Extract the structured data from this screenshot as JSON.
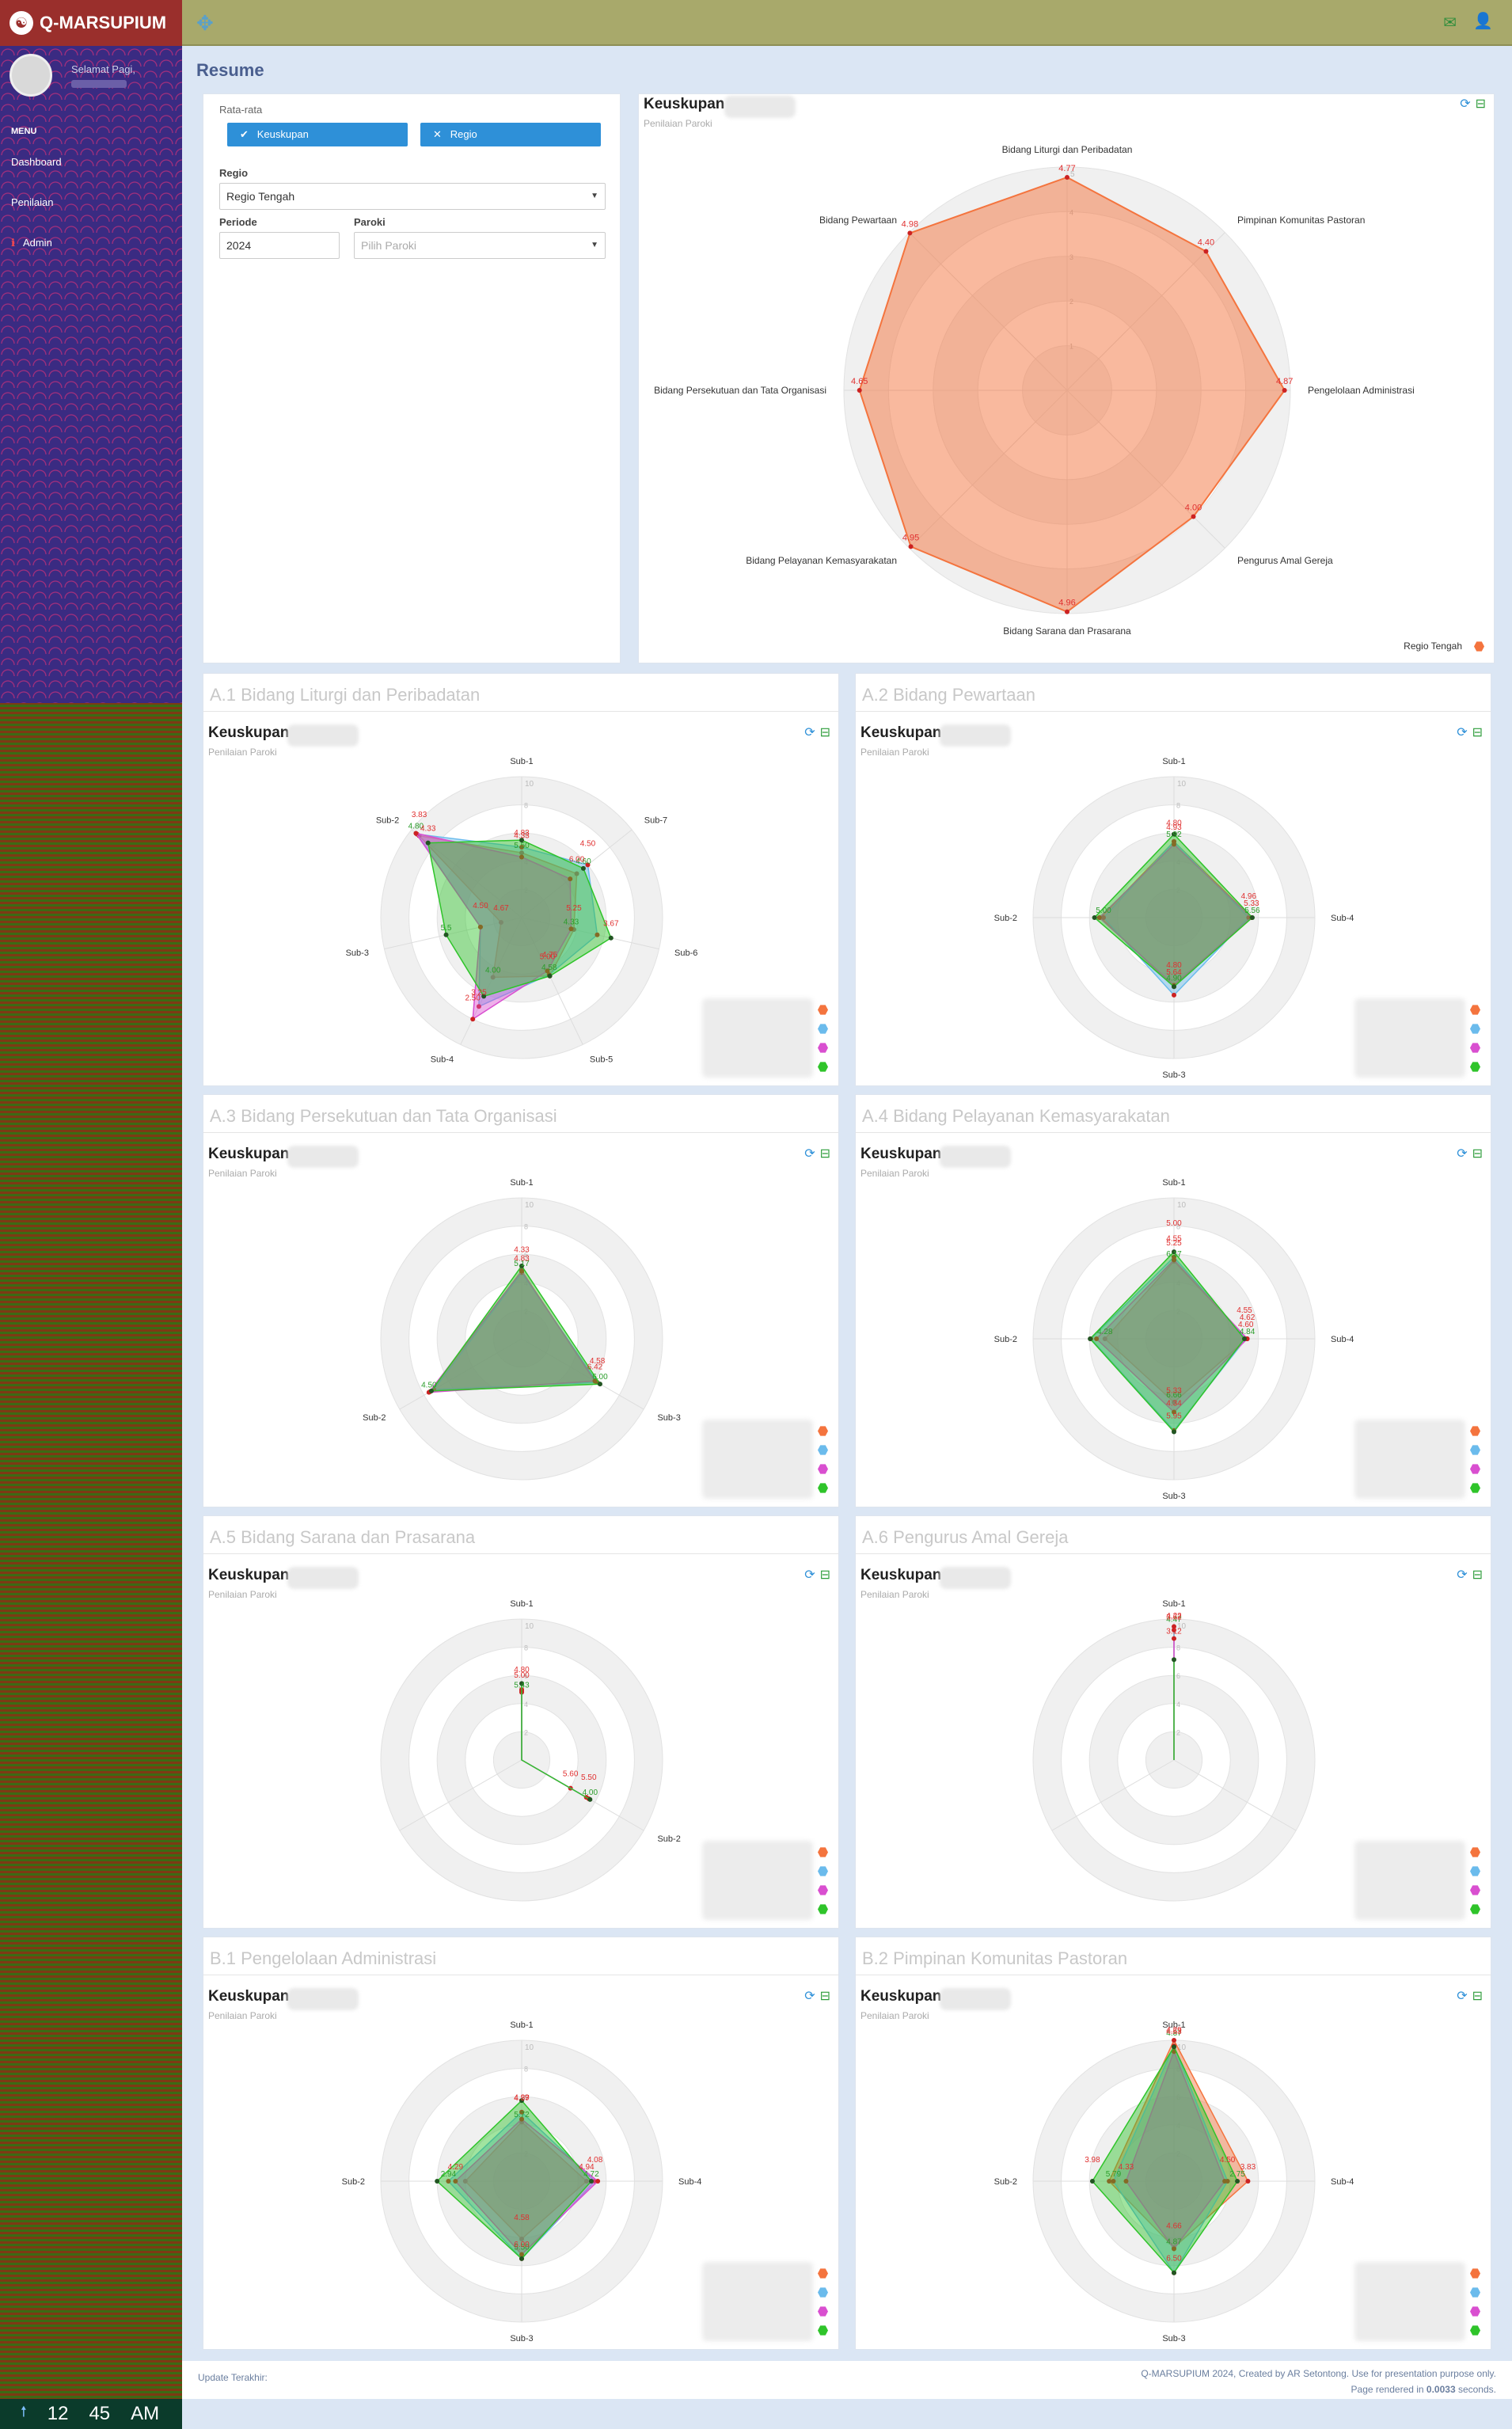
{
  "app": {
    "title": "Q-MARSUPIUM",
    "greeting": "Selamat Pagi,",
    "page_title": "Resume"
  },
  "sidebar": {
    "menu_header": "MENU",
    "items": [
      {
        "label": "Dashboard"
      },
      {
        "label": "Penilaian"
      },
      {
        "label": "Admin"
      }
    ]
  },
  "clock": {
    "hour": "12",
    "minute": "45",
    "ampm": "AM",
    "icon": "arrow-up-icon"
  },
  "filters": {
    "avg_label": "Rata-rata",
    "btn_keuskupan": "Keuskupan",
    "btn_regio": "Regio",
    "regio_label": "Regio",
    "regio_value": "Regio Tengah",
    "periode_label": "Periode",
    "periode_value": "2024",
    "paroki_label": "Paroki",
    "paroki_placeholder": "Pilih Paroki"
  },
  "colors": {
    "orange": "#f4743e",
    "blue": "#6bbbec",
    "purple": "#d94fd0",
    "green": "#2fc42a"
  },
  "main_chart": {
    "title": "Keuskupan",
    "subtitle": "Penilaian Paroki",
    "legend": "Regio Tengah"
  },
  "sections": [
    {
      "title": "A.1 Bidang Liturgi dan Peribadatan",
      "chart_title": "Keuskupan",
      "chart_subtitle": "Penilaian Paroki"
    },
    {
      "title": "A.2 Bidang Pewartaan",
      "chart_title": "Keuskupan",
      "chart_subtitle": "Penilaian Paroki"
    },
    {
      "title": "A.3 Bidang Persekutuan dan Tata Organisasi",
      "chart_title": "Keuskupan",
      "chart_subtitle": "Penilaian Paroki"
    },
    {
      "title": "A.4 Bidang Pelayanan Kemasyarakatan",
      "chart_title": "Keuskupan",
      "chart_subtitle": "Penilaian Paroki"
    },
    {
      "title": "A.5 Bidang Sarana dan Prasarana",
      "chart_title": "Keuskupan",
      "chart_subtitle": "Penilaian Paroki"
    },
    {
      "title": "A.6 Pengurus Amal Gereja",
      "chart_title": "Keuskupan",
      "chart_subtitle": "Penilaian Paroki"
    },
    {
      "title": "B.1 Pengelolaan Administrasi",
      "chart_title": "Keuskupan",
      "chart_subtitle": "Penilaian Paroki"
    },
    {
      "title": "B.2 Pimpinan Komunitas Pastoran",
      "chart_title": "Keuskupan",
      "chart_subtitle": "Penilaian Paroki"
    }
  ],
  "footer": {
    "update": "Update Terakhir:",
    "credit": "Q-MARSUPIUM 2024, Created by AR Setontong. Use for presentation purpose only.",
    "rendered_prefix": "Page rendered in ",
    "rendered_time": "0.0033",
    "rendered_suffix": " seconds."
  },
  "chart_data": [
    {
      "type": "radar",
      "categories": [
        "Bidang Liturgi dan Peribadatan",
        "Pimpinan Komunitas Pastoran",
        "Pengelolaan Administrasi",
        "Pengurus Amal Gereja",
        "Bidang Sarana dan Prasarana",
        "Bidang Pelayanan Kemasyarakatan",
        "Bidang Persekutuan dan Tata Organisasi",
        "Bidang Pewartaan"
      ],
      "series": [
        {
          "name": "Regio Tengah",
          "values": [
            4.77,
            4.4,
            4.87,
            4.0,
            4.96,
            4.95,
            4.65,
            4.98
          ]
        }
      ],
      "ylim": [
        0,
        5
      ],
      "value_labels": [
        "4.77",
        "4.40",
        "4.87",
        "4.00",
        "4.96",
        "4.95",
        "4.65",
        "4.98"
      ]
    },
    {
      "type": "radar",
      "categories": [
        "Sub-1",
        "Sub-7",
        "Sub-6",
        "Sub-5",
        "Sub-4",
        "Sub-3",
        "Sub-2"
      ],
      "series": [
        {
          "values": [
            4.6,
            5.0,
            3.8,
            4.6,
            4.7,
            1.5,
            9.3
          ]
        },
        {
          "values": [
            5.0,
            6.0,
            5.5,
            4.5,
            7.0,
            3.0,
            9.5
          ]
        },
        {
          "values": [
            4.3,
            4.4,
            3.6,
            4.2,
            8.0,
            3.0,
            9.6
          ]
        },
        {
          "values": [
            5.5,
            5.6,
            6.5,
            4.6,
            6.2,
            5.5,
            8.5
          ]
        }
      ],
      "ylim": [
        0,
        10
      ],
      "value_labels": [
        "5.50",
        "4.83",
        "4.33",
        "4.60",
        "6.00",
        "4.50",
        "4.33",
        "3.67",
        "5.25",
        "4.58",
        "5.00",
        "4.75",
        "4.00",
        "3.25",
        "2.50",
        "5.5",
        "4.67",
        "4.50",
        "4.80",
        "4.33",
        "3.83"
      ]
    },
    {
      "type": "radar",
      "categories": [
        "Sub-1",
        "Sub-4",
        "Sub-3",
        "Sub-2"
      ],
      "series": [
        {
          "values": [
            5.4,
            5.5,
            4.9,
            5.2
          ]
        },
        {
          "values": [
            5.4,
            5.3,
            5.5,
            5.0
          ]
        },
        {
          "values": [
            5.2,
            5.5,
            4.8,
            5.3
          ]
        },
        {
          "values": [
            5.92,
            5.56,
            4.9,
            5.64
          ]
        }
      ],
      "ylim": [
        0,
        10
      ],
      "value_labels": [
        "5.92",
        "4.93",
        "4.80",
        "5.56",
        "5.33",
        "4.96",
        "4.90",
        "5.64",
        "4.80",
        "5.00"
      ]
    },
    {
      "type": "radar",
      "categories": [
        "Sub-1",
        "Sub-3",
        "Sub-2"
      ],
      "series": [
        {
          "values": [
            4.83,
            6.0,
            7.5
          ]
        },
        {
          "values": [
            4.7,
            6.2,
            7.2
          ]
        },
        {
          "values": [
            4.8,
            6.0,
            7.6
          ]
        },
        {
          "values": [
            5.17,
            6.42,
            7.4
          ]
        }
      ],
      "ylim": [
        0,
        10
      ],
      "value_labels": [
        "5.17",
        "4.83",
        "4.33",
        "6.00",
        "6.42",
        "4.58",
        "4.50"
      ]
    },
    {
      "type": "radar",
      "categories": [
        "Sub-1",
        "Sub-4",
        "Sub-3",
        "Sub-2"
      ],
      "series": [
        {
          "values": [
            5.5,
            5.2,
            4.5,
            4.9
          ]
        },
        {
          "values": [
            5.8,
            5.1,
            6.5,
            5.9
          ]
        },
        {
          "values": [
            5.6,
            5.2,
            5.2,
            5.5
          ]
        },
        {
          "values": [
            6.17,
            5.0,
            6.6,
            5.95
          ]
        }
      ],
      "ylim": [
        0,
        10
      ],
      "value_labels": [
        "6.17",
        "5.25",
        "4.55",
        "5.00",
        "4.84",
        "4.60",
        "4.62",
        "4.55",
        "6.66",
        "5.95",
        "5.33",
        "4.34",
        "4.28"
      ]
    },
    {
      "type": "radar",
      "categories": [
        "Sub-1",
        "Sub-2"
      ],
      "series": [
        {
          "values": [
            4.8,
            4.0
          ]
        },
        {
          "values": [
            5.0,
            5.5
          ]
        },
        {
          "values": [
            4.9,
            5.3
          ]
        },
        {
          "values": [
            5.43,
            5.6
          ]
        }
      ],
      "ylim": [
        0,
        10
      ],
      "value_labels": [
        "5.43",
        "5.00",
        "4.80",
        "4.00",
        "5.60",
        "5.50"
      ]
    },
    {
      "type": "radar",
      "categories": [
        "Sub-1"
      ],
      "series": [
        {
          "values": [
            9.47
          ]
        },
        {
          "values": [
            9.22
          ]
        },
        {
          "values": [
            8.62
          ]
        },
        {
          "values": [
            7.12
          ]
        }
      ],
      "ylim": [
        0,
        10
      ],
      "value_labels": [
        "4.47",
        "4.22",
        "3.62",
        "3.12"
      ]
    },
    {
      "type": "radar",
      "categories": [
        "Sub-1",
        "Sub-4",
        "Sub-3",
        "Sub-2"
      ],
      "series": [
        {
          "values": [
            4.2,
            4.6,
            4.1,
            4.0
          ]
        },
        {
          "values": [
            4.9,
            5.2,
            5.5,
            5.2
          ]
        },
        {
          "values": [
            4.4,
            5.4,
            5.2,
            4.7
          ]
        },
        {
          "values": [
            5.72,
            4.94,
            5.5,
            6.0
          ]
        }
      ],
      "ylim": [
        0,
        10
      ],
      "value_labels": [
        "5.72",
        "4.57",
        "4.29",
        "4.72",
        "4.94",
        "4.08",
        "5.50",
        "6.00",
        "4.58",
        "2.94",
        "4.29"
      ]
    },
    {
      "type": "radar",
      "categories": [
        "Sub-1",
        "Sub-4",
        "Sub-3",
        "Sub-2"
      ],
      "series": [
        {
          "values": [
            10.0,
            5.25,
            4.7,
            4.6
          ]
        },
        {
          "values": [
            9.6,
            3.8,
            6.5,
            4.3
          ]
        },
        {
          "values": [
            9.2,
            3.6,
            4.8,
            3.4
          ]
        },
        {
          "values": [
            9.53,
            4.5,
            6.5,
            5.79
          ]
        }
      ],
      "ylim": [
        0,
        10
      ],
      "value_labels": [
        "4.87",
        "4.53",
        "4.29",
        "2.75",
        "3.83",
        "4.50",
        "4.87",
        "6.50",
        "4.66",
        "5.79",
        "4.33",
        "3.98"
      ]
    }
  ]
}
